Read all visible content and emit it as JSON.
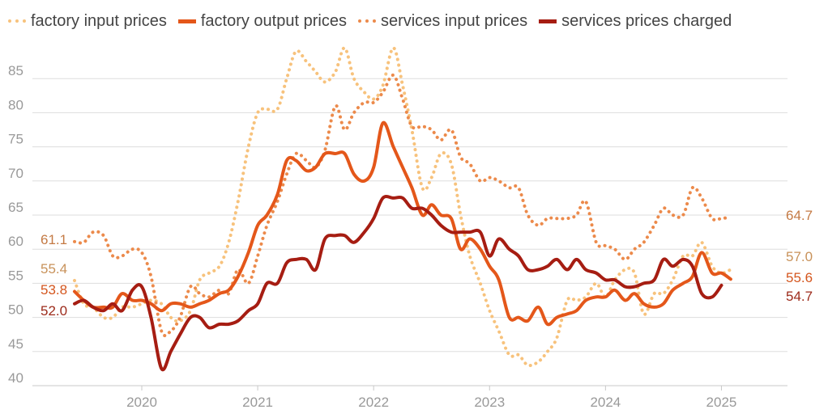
{
  "chart_data": {
    "type": "line",
    "title": "",
    "xlabel": "",
    "ylabel": "",
    "ylim": [
      40,
      90
    ],
    "xlim": [
      2019.42,
      2025.5
    ],
    "yticks": [
      40,
      45,
      50,
      55,
      60,
      65,
      70,
      75,
      80,
      85
    ],
    "xticks": [
      {
        "value": 2020.0,
        "label": "2020"
      },
      {
        "value": 2021.0,
        "label": "2021"
      },
      {
        "value": 2022.0,
        "label": "2022"
      },
      {
        "value": 2023.0,
        "label": "2023"
      },
      {
        "value": 2024.0,
        "label": "2024"
      },
      {
        "value": 2025.0,
        "label": "2025"
      }
    ],
    "grid": true,
    "legend_position": "top",
    "series": [
      {
        "name": "factory input prices",
        "color": "#f7c27c",
        "style": "dotted",
        "end_label": "57.0",
        "start_label": "55.4",
        "points": [
          [
            2019.42,
            55.4
          ],
          [
            2019.5,
            52.0
          ],
          [
            2019.58,
            51.5
          ],
          [
            2019.67,
            50.0
          ],
          [
            2019.75,
            50.0
          ],
          [
            2019.83,
            51.5
          ],
          [
            2019.92,
            51.5
          ],
          [
            2020.0,
            52.0
          ],
          [
            2020.08,
            52.5
          ],
          [
            2020.17,
            52.0
          ],
          [
            2020.25,
            50.0
          ],
          [
            2020.33,
            49.5
          ],
          [
            2020.42,
            51.0
          ],
          [
            2020.5,
            55.5
          ],
          [
            2020.58,
            56.5
          ],
          [
            2020.67,
            57.5
          ],
          [
            2020.75,
            61.0
          ],
          [
            2020.83,
            67.0
          ],
          [
            2020.92,
            75.0
          ],
          [
            2021.0,
            80.0
          ],
          [
            2021.08,
            80.5
          ],
          [
            2021.17,
            80.5
          ],
          [
            2021.25,
            85.0
          ],
          [
            2021.33,
            89.0
          ],
          [
            2021.42,
            87.5
          ],
          [
            2021.5,
            86.0
          ],
          [
            2021.58,
            84.5
          ],
          [
            2021.67,
            86.0
          ],
          [
            2021.75,
            89.5
          ],
          [
            2021.83,
            85.0
          ],
          [
            2021.92,
            83.0
          ],
          [
            2022.0,
            82.0
          ],
          [
            2022.08,
            84.0
          ],
          [
            2022.17,
            89.5
          ],
          [
            2022.25,
            84.0
          ],
          [
            2022.33,
            77.5
          ],
          [
            2022.42,
            69.0
          ],
          [
            2022.5,
            70.5
          ],
          [
            2022.58,
            74.0
          ],
          [
            2022.67,
            72.5
          ],
          [
            2022.75,
            65.0
          ],
          [
            2022.83,
            59.0
          ],
          [
            2022.92,
            55.0
          ],
          [
            2023.0,
            51.0
          ],
          [
            2023.08,
            48.0
          ],
          [
            2023.17,
            44.5
          ],
          [
            2023.25,
            44.5
          ],
          [
            2023.33,
            43.0
          ],
          [
            2023.42,
            43.5
          ],
          [
            2023.5,
            45.0
          ],
          [
            2023.58,
            47.0
          ],
          [
            2023.67,
            52.5
          ],
          [
            2023.75,
            52.5
          ],
          [
            2023.83,
            53.0
          ],
          [
            2023.92,
            55.0
          ],
          [
            2024.0,
            53.0
          ],
          [
            2024.08,
            55.5
          ],
          [
            2024.17,
            57.0
          ],
          [
            2024.25,
            56.5
          ],
          [
            2024.33,
            50.5
          ],
          [
            2024.42,
            53.5
          ],
          [
            2024.5,
            53.5
          ],
          [
            2024.58,
            55.5
          ],
          [
            2024.67,
            59.0
          ],
          [
            2024.75,
            59.0
          ],
          [
            2024.83,
            61.0
          ],
          [
            2024.92,
            57.5
          ],
          [
            2025.0,
            56.5
          ],
          [
            2025.08,
            57.0
          ]
        ]
      },
      {
        "name": "factory output prices",
        "color": "#e4571a",
        "style": "solid",
        "end_label": "55.6",
        "start_label": "53.8",
        "points": [
          [
            2019.42,
            53.8
          ],
          [
            2019.5,
            52.5
          ],
          [
            2019.58,
            51.5
          ],
          [
            2019.67,
            51.5
          ],
          [
            2019.75,
            51.5
          ],
          [
            2019.83,
            53.5
          ],
          [
            2019.92,
            52.5
          ],
          [
            2020.0,
            52.5
          ],
          [
            2020.08,
            52.0
          ],
          [
            2020.17,
            51.0
          ],
          [
            2020.25,
            52.0
          ],
          [
            2020.33,
            52.0
          ],
          [
            2020.42,
            51.5
          ],
          [
            2020.5,
            52.0
          ],
          [
            2020.58,
            52.5
          ],
          [
            2020.67,
            53.5
          ],
          [
            2020.75,
            54.0
          ],
          [
            2020.83,
            56.0
          ],
          [
            2020.92,
            59.5
          ],
          [
            2021.0,
            63.5
          ],
          [
            2021.08,
            65.0
          ],
          [
            2021.17,
            68.0
          ],
          [
            2021.25,
            73.0
          ],
          [
            2021.33,
            73.0
          ],
          [
            2021.42,
            71.5
          ],
          [
            2021.5,
            72.0
          ],
          [
            2021.58,
            74.0
          ],
          [
            2021.67,
            74.0
          ],
          [
            2021.75,
            74.0
          ],
          [
            2021.83,
            71.0
          ],
          [
            2021.92,
            70.0
          ],
          [
            2022.0,
            72.0
          ],
          [
            2022.08,
            78.5
          ],
          [
            2022.17,
            75.0
          ],
          [
            2022.25,
            72.0
          ],
          [
            2022.33,
            69.0
          ],
          [
            2022.42,
            65.0
          ],
          [
            2022.5,
            66.5
          ],
          [
            2022.58,
            65.0
          ],
          [
            2022.67,
            64.5
          ],
          [
            2022.75,
            60.0
          ],
          [
            2022.83,
            61.5
          ],
          [
            2022.92,
            60.0
          ],
          [
            2023.0,
            57.5
          ],
          [
            2023.08,
            55.5
          ],
          [
            2023.17,
            50.0
          ],
          [
            2023.25,
            50.0
          ],
          [
            2023.33,
            49.5
          ],
          [
            2023.42,
            51.5
          ],
          [
            2023.5,
            49.0
          ],
          [
            2023.58,
            50.0
          ],
          [
            2023.67,
            50.5
          ],
          [
            2023.75,
            51.0
          ],
          [
            2023.83,
            52.5
          ],
          [
            2023.92,
            53.0
          ],
          [
            2024.0,
            53.0
          ],
          [
            2024.08,
            54.0
          ],
          [
            2024.17,
            52.5
          ],
          [
            2024.25,
            53.5
          ],
          [
            2024.33,
            52.0
          ],
          [
            2024.42,
            51.5
          ],
          [
            2024.5,
            52.0
          ],
          [
            2024.58,
            54.0
          ],
          [
            2024.67,
            55.0
          ],
          [
            2024.75,
            56.0
          ],
          [
            2024.83,
            59.5
          ],
          [
            2024.92,
            56.5
          ],
          [
            2025.0,
            56.5
          ],
          [
            2025.08,
            55.6
          ]
        ]
      },
      {
        "name": "services input prices",
        "color": "#ec8a4b",
        "style": "dotted",
        "end_label": "64.7",
        "start_label": "61.1",
        "points": [
          [
            2019.42,
            61.1
          ],
          [
            2019.5,
            61.0
          ],
          [
            2019.58,
            62.5
          ],
          [
            2019.67,
            62.0
          ],
          [
            2019.75,
            59.0
          ],
          [
            2019.83,
            59.0
          ],
          [
            2019.92,
            60.0
          ],
          [
            2020.0,
            59.5
          ],
          [
            2020.08,
            56.0
          ],
          [
            2020.17,
            48.0
          ],
          [
            2020.25,
            48.0
          ],
          [
            2020.33,
            50.0
          ],
          [
            2020.42,
            54.5
          ],
          [
            2020.5,
            53.5
          ],
          [
            2020.58,
            53.0
          ],
          [
            2020.67,
            54.0
          ],
          [
            2020.75,
            53.5
          ],
          [
            2020.83,
            57.0
          ],
          [
            2020.92,
            55.0
          ],
          [
            2021.0,
            59.0
          ],
          [
            2021.08,
            63.5
          ],
          [
            2021.17,
            67.0
          ],
          [
            2021.25,
            71.0
          ],
          [
            2021.33,
            74.0
          ],
          [
            2021.42,
            73.0
          ],
          [
            2021.5,
            72.0
          ],
          [
            2021.58,
            74.5
          ],
          [
            2021.67,
            81.0
          ],
          [
            2021.75,
            77.5
          ],
          [
            2021.83,
            80.0
          ],
          [
            2021.92,
            81.5
          ],
          [
            2022.0,
            81.5
          ],
          [
            2022.08,
            83.0
          ],
          [
            2022.17,
            85.5
          ],
          [
            2022.25,
            82.0
          ],
          [
            2022.33,
            78.0
          ],
          [
            2022.42,
            78.0
          ],
          [
            2022.5,
            77.5
          ],
          [
            2022.58,
            76.0
          ],
          [
            2022.67,
            77.5
          ],
          [
            2022.75,
            73.5
          ],
          [
            2022.83,
            72.5
          ],
          [
            2022.92,
            70.0
          ],
          [
            2023.0,
            70.5
          ],
          [
            2023.08,
            70.0
          ],
          [
            2023.17,
            69.0
          ],
          [
            2023.25,
            69.0
          ],
          [
            2023.33,
            65.0
          ],
          [
            2023.42,
            63.5
          ],
          [
            2023.5,
            64.5
          ],
          [
            2023.58,
            64.5
          ],
          [
            2023.67,
            64.5
          ],
          [
            2023.75,
            65.0
          ],
          [
            2023.83,
            67.0
          ],
          [
            2023.92,
            61.0
          ],
          [
            2024.0,
            60.5
          ],
          [
            2024.08,
            60.0
          ],
          [
            2024.17,
            58.5
          ],
          [
            2024.25,
            60.0
          ],
          [
            2024.33,
            61.0
          ],
          [
            2024.42,
            63.5
          ],
          [
            2024.5,
            66.0
          ],
          [
            2024.58,
            65.0
          ],
          [
            2024.67,
            65.0
          ],
          [
            2024.75,
            69.0
          ],
          [
            2024.83,
            67.5
          ],
          [
            2024.92,
            64.5
          ],
          [
            2025.0,
            64.5
          ],
          [
            2025.08,
            64.7
          ]
        ]
      },
      {
        "name": "services prices charged",
        "color": "#a61d12",
        "style": "solid",
        "end_label": "54.7",
        "start_label": "52.0",
        "points": [
          [
            2019.42,
            52.0
          ],
          [
            2019.5,
            52.5
          ],
          [
            2019.58,
            51.5
          ],
          [
            2019.67,
            51.0
          ],
          [
            2019.75,
            52.0
          ],
          [
            2019.83,
            51.0
          ],
          [
            2019.92,
            54.0
          ],
          [
            2020.0,
            54.5
          ],
          [
            2020.08,
            50.0
          ],
          [
            2020.17,
            42.5
          ],
          [
            2020.25,
            45.0
          ],
          [
            2020.33,
            47.5
          ],
          [
            2020.42,
            50.0
          ],
          [
            2020.5,
            50.0
          ],
          [
            2020.58,
            48.5
          ],
          [
            2020.67,
            49.0
          ],
          [
            2020.75,
            49.0
          ],
          [
            2020.83,
            49.5
          ],
          [
            2020.92,
            51.0
          ],
          [
            2021.0,
            52.0
          ],
          [
            2021.08,
            55.0
          ],
          [
            2021.17,
            55.0
          ],
          [
            2021.25,
            58.0
          ],
          [
            2021.33,
            58.5
          ],
          [
            2021.42,
            58.5
          ],
          [
            2021.5,
            57.0
          ],
          [
            2021.58,
            61.5
          ],
          [
            2021.67,
            62.0
          ],
          [
            2021.75,
            62.0
          ],
          [
            2021.83,
            61.0
          ],
          [
            2021.92,
            62.5
          ],
          [
            2022.0,
            64.5
          ],
          [
            2022.08,
            67.5
          ],
          [
            2022.17,
            67.5
          ],
          [
            2022.25,
            67.5
          ],
          [
            2022.33,
            66.0
          ],
          [
            2022.42,
            66.0
          ],
          [
            2022.5,
            65.0
          ],
          [
            2022.58,
            63.5
          ],
          [
            2022.67,
            62.5
          ],
          [
            2022.75,
            62.5
          ],
          [
            2022.83,
            62.5
          ],
          [
            2022.92,
            62.5
          ],
          [
            2023.0,
            59.0
          ],
          [
            2023.08,
            61.5
          ],
          [
            2023.17,
            60.0
          ],
          [
            2023.25,
            59.0
          ],
          [
            2023.33,
            57.0
          ],
          [
            2023.42,
            57.0
          ],
          [
            2023.5,
            57.5
          ],
          [
            2023.58,
            58.5
          ],
          [
            2023.67,
            57.0
          ],
          [
            2023.75,
            58.5
          ],
          [
            2023.83,
            57.0
          ],
          [
            2023.92,
            56.5
          ],
          [
            2024.0,
            55.5
          ],
          [
            2024.08,
            55.5
          ],
          [
            2024.17,
            54.5
          ],
          [
            2024.25,
            54.5
          ],
          [
            2024.33,
            55.0
          ],
          [
            2024.42,
            55.5
          ],
          [
            2024.5,
            58.5
          ],
          [
            2024.58,
            57.5
          ],
          [
            2024.67,
            58.5
          ],
          [
            2024.75,
            57.5
          ],
          [
            2024.83,
            53.5
          ],
          [
            2024.92,
            53.0
          ],
          [
            2025.0,
            54.7
          ]
        ]
      }
    ]
  }
}
